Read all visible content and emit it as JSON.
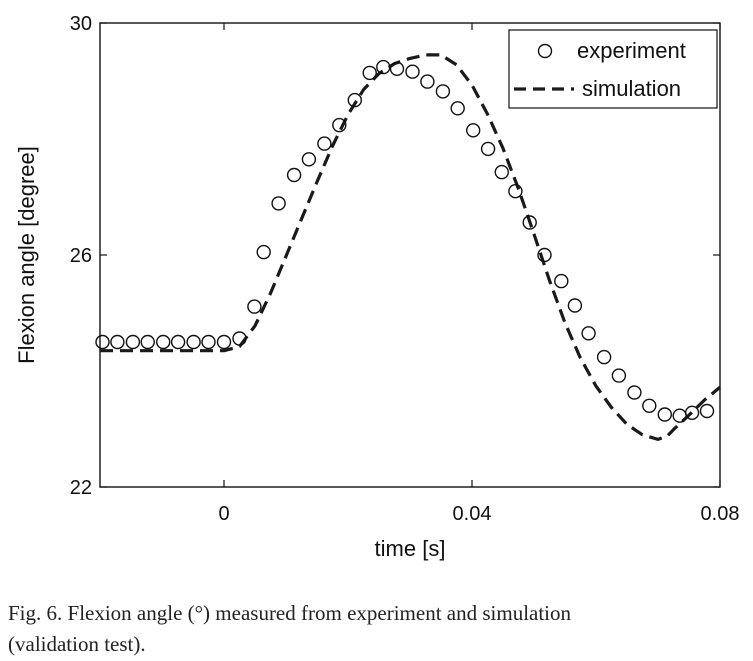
{
  "chart_data": {
    "type": "line",
    "title": "",
    "xlabel": "time [s]",
    "ylabel": "Flexion angle [degree]",
    "xlim": [
      -0.02,
      0.08
    ],
    "ylim": [
      22,
      30
    ],
    "x_ticks": [
      0,
      0.04,
      0.08
    ],
    "y_ticks": [
      22,
      26,
      30
    ],
    "x_tick_labels": [
      "0",
      "0.04",
      "0.08"
    ],
    "y_tick_labels": [
      "22",
      "26",
      "30"
    ],
    "legend_position": "top-right",
    "grid": false,
    "series": [
      {
        "name": "experiment",
        "style": "markers",
        "marker": "open-circle",
        "x": [
          -0.0196,
          -0.0172,
          -0.0147,
          -0.0123,
          -0.0098,
          -0.0074,
          -0.0049,
          -0.0025,
          0.0,
          0.0025,
          0.0049,
          0.0064,
          0.0088,
          0.0113,
          0.0137,
          0.0162,
          0.0186,
          0.0211,
          0.0235,
          0.0257,
          0.0279,
          0.0304,
          0.0328,
          0.0353,
          0.0377,
          0.0402,
          0.0426,
          0.0448,
          0.047,
          0.0493,
          0.0517,
          0.0544,
          0.0566,
          0.0588,
          0.0613,
          0.0637,
          0.0662,
          0.0686,
          0.0711,
          0.0735,
          0.0755,
          0.0779
        ],
        "y": [
          24.5,
          24.5,
          24.5,
          24.5,
          24.5,
          24.5,
          24.5,
          24.5,
          24.5,
          24.56,
          25.11,
          26.05,
          26.89,
          27.38,
          27.65,
          27.92,
          28.24,
          28.67,
          29.14,
          29.24,
          29.21,
          29.16,
          28.99,
          28.82,
          28.53,
          28.15,
          27.83,
          27.43,
          27.1,
          26.56,
          26.0,
          25.55,
          25.13,
          24.65,
          24.24,
          23.92,
          23.63,
          23.4,
          23.25,
          23.23,
          23.28,
          23.31
        ]
      },
      {
        "name": "simulation",
        "style": "dashed-line",
        "color": "#1a1a1a",
        "x": [
          -0.02,
          0.0,
          0.0025,
          0.005,
          0.0075,
          0.01,
          0.0125,
          0.015,
          0.0175,
          0.02,
          0.0225,
          0.025,
          0.0275,
          0.03,
          0.0325,
          0.035,
          0.0375,
          0.04,
          0.0425,
          0.045,
          0.0475,
          0.05,
          0.0525,
          0.055,
          0.0575,
          0.06,
          0.0625,
          0.065,
          0.0675,
          0.07,
          0.0715,
          0.0725,
          0.075,
          0.0775,
          0.08
        ],
        "y": [
          24.35,
          24.35,
          24.42,
          24.78,
          25.34,
          25.98,
          26.62,
          27.26,
          27.88,
          28.42,
          28.85,
          29.13,
          29.3,
          29.39,
          29.45,
          29.45,
          29.28,
          28.93,
          28.43,
          27.84,
          27.14,
          26.36,
          25.56,
          24.83,
          24.22,
          23.74,
          23.37,
          23.08,
          22.9,
          22.82,
          22.88,
          22.99,
          23.24,
          23.5,
          23.72
        ]
      }
    ]
  },
  "caption": {
    "line1": "Fig. 6. Flexion angle (°) measured from experiment and simulation",
    "line2": "(validation test)."
  }
}
